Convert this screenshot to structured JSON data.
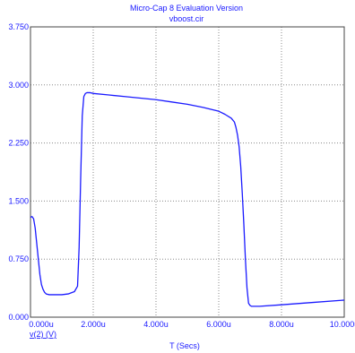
{
  "title": "Micro-Cap 8 Evaluation Version",
  "subtitle": "vboost.cir",
  "colors": {
    "trace": "#1a1aff",
    "grid": "#888888",
    "text": "#1a1aff"
  },
  "chart_data": {
    "type": "line",
    "xlabel": "T (Secs)",
    "ylabel": "",
    "xlim": [
      0,
      10
    ],
    "ylim": [
      0,
      3.75
    ],
    "x_ticks": [
      0,
      2,
      4,
      6,
      8,
      10
    ],
    "y_ticks": [
      0,
      0.75,
      1.5,
      2.25,
      3.0,
      3.75
    ],
    "x_tick_labels": [
      "0.000u",
      "2.000u",
      "4.000u",
      "6.000u",
      "8.000u",
      "10.000u"
    ],
    "y_tick_labels": [
      "0.000",
      "0.750",
      "1.500",
      "2.250",
      "3.000",
      "3.750"
    ],
    "grid": true,
    "series": [
      {
        "name": "v(2) (V)",
        "x": [
          0,
          0.05,
          0.1,
          0.15,
          0.2,
          0.25,
          0.3,
          0.35,
          0.4,
          0.45,
          0.5,
          0.6,
          0.7,
          0.8,
          1.0,
          1.2,
          1.4,
          1.5,
          1.55,
          1.6,
          1.65,
          1.7,
          1.75,
          1.8,
          1.9,
          2.0,
          2.5,
          3.0,
          3.5,
          4.0,
          4.5,
          5.0,
          5.5,
          6.0,
          6.2,
          6.4,
          6.5,
          6.55,
          6.6,
          6.65,
          6.7,
          6.75,
          6.8,
          6.85,
          6.9,
          6.95,
          7.0,
          7.05,
          7.1,
          7.3,
          8.0,
          9.0,
          10.0
        ],
        "y": [
          1.29,
          1.3,
          1.27,
          1.15,
          0.95,
          0.75,
          0.55,
          0.42,
          0.36,
          0.32,
          0.3,
          0.29,
          0.29,
          0.29,
          0.29,
          0.3,
          0.33,
          0.4,
          0.9,
          1.8,
          2.6,
          2.85,
          2.89,
          2.9,
          2.9,
          2.89,
          2.87,
          2.85,
          2.83,
          2.81,
          2.78,
          2.75,
          2.71,
          2.66,
          2.62,
          2.57,
          2.52,
          2.45,
          2.35,
          2.2,
          1.95,
          1.6,
          1.2,
          0.75,
          0.38,
          0.18,
          0.15,
          0.14,
          0.14,
          0.14,
          0.16,
          0.19,
          0.22
        ]
      }
    ]
  }
}
